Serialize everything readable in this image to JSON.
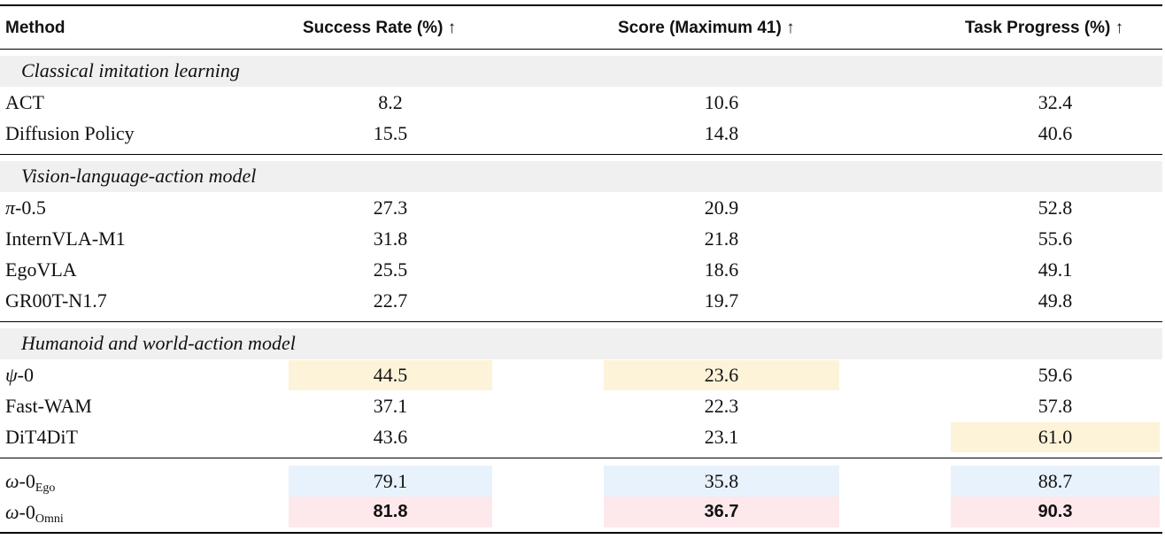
{
  "header": {
    "method": "Method",
    "success": "Success Rate (%) ↑",
    "score": "Score (Maximum 41) ↑",
    "progress": "Task Progress (%) ↑"
  },
  "sections": [
    {
      "title": "Classical imitation learning",
      "rows": [
        {
          "name": "ACT",
          "success": "8.2",
          "score": "10.6",
          "progress": "32.4"
        },
        {
          "name": "Diffusion Policy",
          "success": "15.5",
          "score": "14.8",
          "progress": "40.6"
        }
      ]
    },
    {
      "title": "Vision-language-action model",
      "rows": [
        {
          "name_sym": "π",
          "name_rest": "-0.5",
          "success": "27.3",
          "score": "20.9",
          "progress": "52.8"
        },
        {
          "name": "InternVLA-M1",
          "success": "31.8",
          "score": "21.8",
          "progress": "55.6"
        },
        {
          "name": "EgoVLA",
          "success": "25.5",
          "score": "18.6",
          "progress": "49.1"
        },
        {
          "name": "GR00T-N1.7",
          "success": "22.7",
          "score": "19.7",
          "progress": "49.8"
        }
      ]
    },
    {
      "title": "Humanoid and world-action model",
      "rows": [
        {
          "name_sym": "ψ",
          "name_rest": "-0",
          "success": "44.5",
          "score": "23.6",
          "progress": "59.6"
        },
        {
          "name": "Fast-WAM",
          "success": "37.1",
          "score": "22.3",
          "progress": "57.8"
        },
        {
          "name": "DiT4DiT",
          "success": "43.6",
          "score": "23.1",
          "progress": "61.0"
        }
      ]
    },
    {
      "title": "",
      "rows": [
        {
          "name_sym": "ω",
          "name_rest": "-0",
          "name_sub": "Ego",
          "success": "79.1",
          "score": "35.8",
          "progress": "88.7"
        },
        {
          "name_sym": "ω",
          "name_rest": "-0",
          "name_sub": "Omni",
          "success": "81.8",
          "score": "36.7",
          "progress": "90.3"
        }
      ]
    }
  ],
  "colors": {
    "second_best": "#fdf3d9",
    "ours": "#e8f2fc",
    "best": "#fde8ec",
    "section_band": "#f0f0f0"
  }
}
